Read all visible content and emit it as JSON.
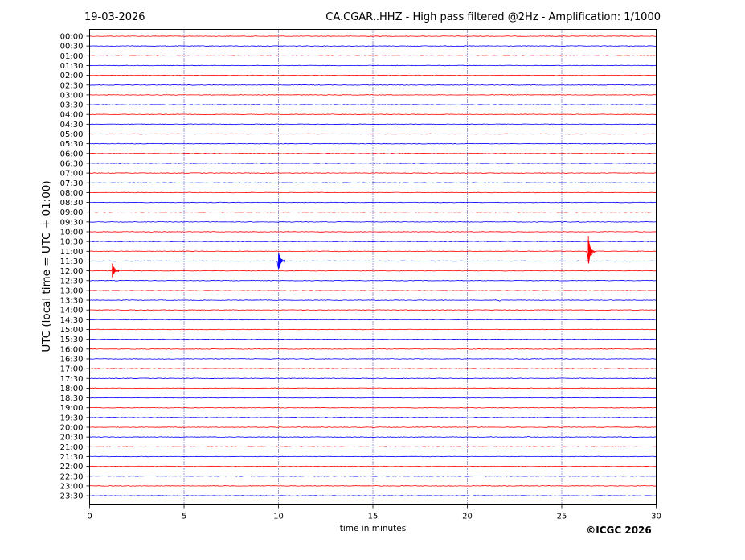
{
  "header": {
    "date": "19-03-2026",
    "title": "CA.CGAR..HHZ - High pass filtered @2Hz - Amplification: 1/1000"
  },
  "copyright": "©ICGC 2026",
  "colors": {
    "even_trace": "#ff0000",
    "odd_trace": "#0000ff",
    "frame": "#000000",
    "gridline": "#00008b"
  },
  "chart_data": {
    "type": "line",
    "title": "CA.CGAR..HHZ - High pass filtered @2Hz - Amplification: 1/1000",
    "xlabel": "time in minutes",
    "ylabel": "UTC (local time = UTC + 01:00)",
    "xlim": [
      0,
      30
    ],
    "xticks": [
      "0",
      "5",
      "10",
      "15",
      "20",
      "25",
      "30"
    ],
    "x_gridlines": [
      5,
      10,
      15,
      20,
      25
    ],
    "grid": "vertical dotted",
    "rows": [
      "00:00",
      "00:30",
      "01:00",
      "01:30",
      "02:00",
      "02:30",
      "03:00",
      "03:30",
      "04:00",
      "04:30",
      "05:00",
      "05:30",
      "06:00",
      "06:30",
      "07:00",
      "07:30",
      "08:00",
      "08:30",
      "09:00",
      "09:30",
      "10:00",
      "10:30",
      "11:00",
      "11:30",
      "12:00",
      "12:30",
      "13:00",
      "13:30",
      "14:00",
      "14:30",
      "15:00",
      "15:30",
      "16:00",
      "16:30",
      "17:00",
      "17:30",
      "18:00",
      "18:30",
      "19:00",
      "19:30",
      "20:00",
      "20:30",
      "21:00",
      "21:30",
      "22:00",
      "22:30",
      "23:00",
      "23:30"
    ],
    "row_colors": [
      "red",
      "blue"
    ],
    "events": [
      {
        "row": "11:00",
        "minute": 26.4,
        "amplitude": 1.7,
        "color": "red"
      },
      {
        "row": "11:30",
        "minute": 10.0,
        "amplitude": 1.1,
        "color": "blue"
      },
      {
        "row": "12:00",
        "minute": 1.2,
        "amplitude": 0.8,
        "color": "red"
      },
      {
        "row": "07:30",
        "minute": 13.2,
        "amplitude": 0.12,
        "color": "blue"
      },
      {
        "row": "09:30",
        "minute": 25.8,
        "amplitude": 0.12,
        "color": "blue"
      },
      {
        "row": "11:00",
        "minute": 13.2,
        "amplitude": 0.12,
        "color": "red"
      },
      {
        "row": "13:30",
        "minute": 21.7,
        "amplitude": 0.1,
        "color": "blue"
      },
      {
        "row": "20:30",
        "minute": 6.8,
        "amplitude": 0.08,
        "color": "blue"
      },
      {
        "row": "20:30",
        "minute": 23.2,
        "amplitude": 0.08,
        "color": "blue"
      }
    ]
  }
}
